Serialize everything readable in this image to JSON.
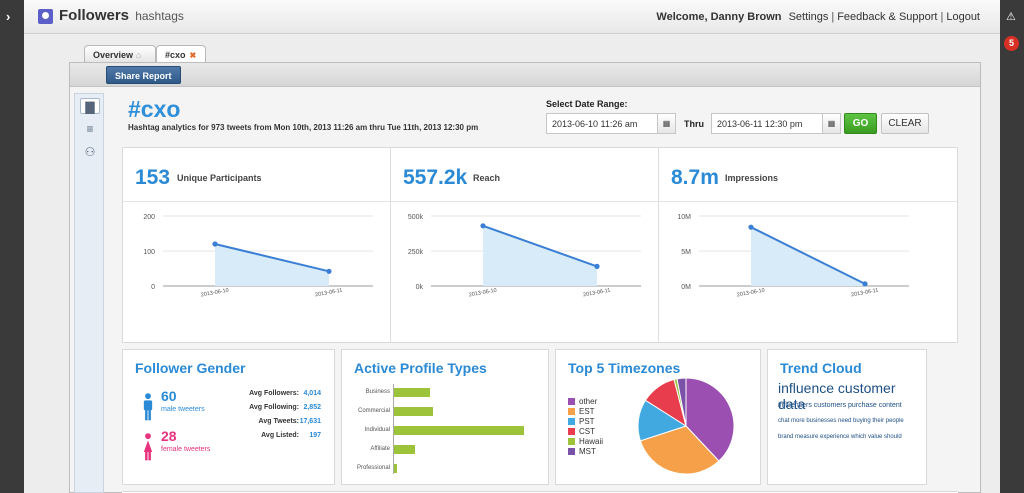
{
  "app": {
    "brand": "Followers",
    "brand_sub": "hashtags",
    "welcome": "Welcome, Danny Brown",
    "nav": [
      "Settings",
      "Feedback & Support",
      "Logout"
    ],
    "notification_count": "5"
  },
  "tabs": [
    {
      "label": "Overview"
    },
    {
      "label": "#cxo"
    }
  ],
  "toolbar": {
    "share_label": "Share Report"
  },
  "header": {
    "title": "#cxo",
    "subtitle": "Hashtag analytics for 973 tweets from Mon 10th, 2013 11:26 am thru Tue 11th, 2013 12:30 pm"
  },
  "date_range": {
    "label": "Select Date Range:",
    "from": "2013-06-10 11:26 am",
    "thru_label": "Thru",
    "to": "2013-06-11 12:30 pm",
    "go_label": "GO",
    "clear_label": "CLEAR"
  },
  "metrics": [
    {
      "value": "153",
      "label": "Unique Participants"
    },
    {
      "value": "557.2k",
      "label": "Reach"
    },
    {
      "value": "8.7m",
      "label": "Impressions"
    }
  ],
  "chart_data": [
    {
      "type": "area",
      "categories": [
        "2013-06-10",
        "2013-06-11"
      ],
      "values": [
        120,
        42
      ],
      "ylim": [
        0,
        200
      ],
      "yticks": [
        "0",
        "100",
        "200"
      ],
      "color": "#3a7fd5"
    },
    {
      "type": "area",
      "categories": [
        "2013-06-10",
        "2013-06-11"
      ],
      "values": [
        430000,
        140000
      ],
      "ylim": [
        0,
        500000
      ],
      "yticks": [
        "0k",
        "250k",
        "500k"
      ],
      "color": "#3a7fd5"
    },
    {
      "type": "area",
      "categories": [
        "2013-06-10",
        "2013-06-11"
      ],
      "values": [
        8400000,
        300000
      ],
      "ylim": [
        0,
        10000000
      ],
      "yticks": [
        "0M",
        "5M",
        "10M"
      ],
      "color": "#3a7fd5"
    },
    {
      "type": "bar",
      "title": "Active Profile Types",
      "categories": [
        "Business",
        "Commercial",
        "Individual",
        "Affiliate",
        "Professional"
      ],
      "values": [
        28,
        30,
        100,
        16,
        2
      ],
      "color": "#9dc33b"
    },
    {
      "type": "pie",
      "title": "Top 5 Timezones",
      "categories": [
        "other",
        "EST",
        "PST",
        "CST",
        "Hawaii",
        "MST"
      ],
      "values": [
        38,
        32,
        14,
        12,
        1,
        3
      ],
      "colors": [
        "#9b4fb0",
        "#f7a04a",
        "#41a8e0",
        "#e83d4c",
        "#9dc33b",
        "#7a52a8"
      ]
    }
  ],
  "gender": {
    "title": "Follower Gender",
    "male": {
      "count": "60",
      "label": "male tweeters"
    },
    "female": {
      "count": "28",
      "label": "female tweeters"
    },
    "stats": [
      {
        "label": "Avg Followers:",
        "value": "4,014"
      },
      {
        "label": "Avg Following:",
        "value": "2,852"
      },
      {
        "label": "Avg Tweets:",
        "value": "17,631"
      },
      {
        "label": "Avg Listed:",
        "value": "197"
      }
    ]
  },
  "trend": {
    "title": "Trend Cloud",
    "lines": [
      "influence customer data",
      "influencers customers purchase content",
      "chat more businesses need buying their people",
      "brand measure experience which value should"
    ]
  }
}
